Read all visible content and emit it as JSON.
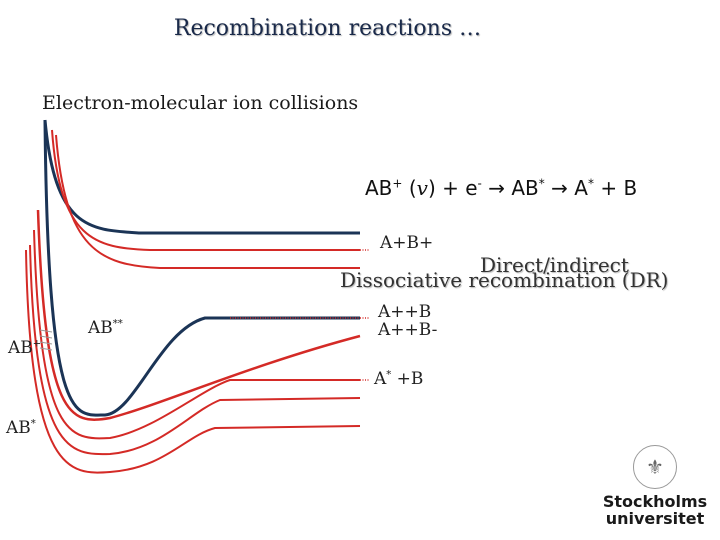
{
  "slide": {
    "title": "Recombination reactions …",
    "subtitle": "Electron-molecular ion collisions"
  },
  "equation": {
    "lhs_ion": "AB",
    "lhs_sup": "+",
    "vib": "v",
    "electron": "e",
    "electron_sup": "-",
    "arrow": "→",
    "intermediate": "AB",
    "intermediate_sup": "*",
    "products_a": "A",
    "products_a_sup": "*",
    "plus": "+",
    "products_b": "B"
  },
  "labels": {
    "ab_plus": "AB",
    "ab_plus_sup": "+",
    "ab_double_star": "AB",
    "ab_double_star_sup": "**",
    "ab_star": "AB",
    "ab_star_sup": "*",
    "a_b_plus": "A+B+",
    "a_plus_b": "A++B",
    "a_plus_b_minus": "A++B-",
    "a_star_b_1": "A",
    "a_star_b_sup": "*",
    "a_star_b_2": " +B",
    "dr_line1": "Direct/indirect",
    "dr_line2": "Dissociative recombination (DR)"
  },
  "logo": {
    "name_line1": "Stockholms",
    "name_line2": "universitet",
    "seal_icon": "university-seal-icon"
  },
  "colors": {
    "ion_curve": "#1b3456",
    "neutral_curve": "#d42a26",
    "title": "#1a2a4a"
  }
}
